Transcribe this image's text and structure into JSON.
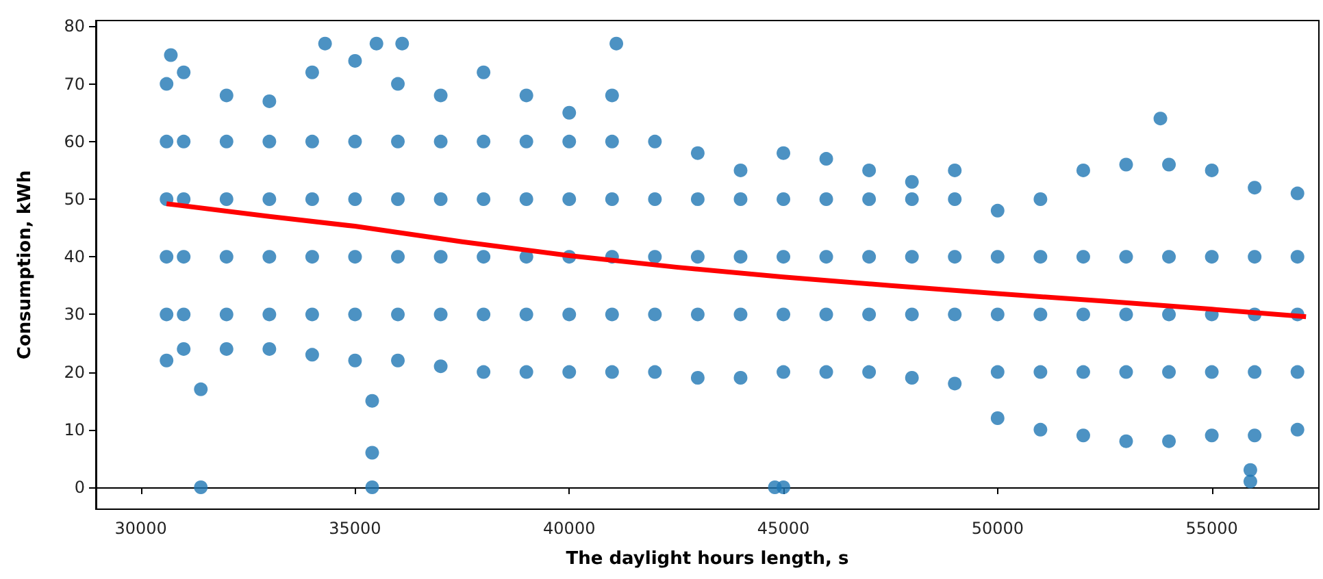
{
  "chart_data": {
    "type": "scatter",
    "xlabel": "The daylight hours length, s",
    "ylabel": "Consumption, kWh",
    "xlim": [
      28950,
      57500
    ],
    "ylim": [
      -3.8,
      81
    ],
    "xticks": [
      30000,
      35000,
      40000,
      45000,
      50000,
      55000
    ],
    "yticks": [
      0,
      10,
      20,
      30,
      40,
      50,
      60,
      70,
      80
    ],
    "series": [
      {
        "color": "#1f77b4",
        "marker": "circle",
        "x": [
          30600,
          31000,
          32000,
          33000,
          34000,
          35000,
          36000,
          37000,
          38000,
          39000,
          40000,
          41000,
          42000,
          43000,
          44000,
          45000,
          46000,
          47000,
          48000,
          49000,
          50000,
          51000,
          52000,
          53000,
          54000,
          55000,
          56000,
          57000,
          30600,
          31000,
          32000,
          33000,
          34000,
          35000,
          36000,
          37000,
          38000,
          39000,
          40000,
          41000,
          42000,
          43000,
          44000,
          45000,
          46000,
          47000,
          48000,
          49000,
          50000,
          51000,
          52000,
          53000,
          54000,
          55000,
          56000,
          57000,
          30600,
          30600,
          30600,
          30600,
          31000,
          31000,
          31000,
          31000,
          32000,
          32000,
          32000,
          32000,
          33000,
          33000,
          33000,
          33000,
          34000,
          34000,
          34000,
          34000,
          35000,
          35000,
          35000,
          35000,
          36000,
          36000,
          36000,
          36000,
          37000,
          37000,
          37000,
          37000,
          38000,
          38000,
          38000,
          38000,
          39000,
          39000,
          39000,
          39000,
          40000,
          40000,
          40000,
          40000,
          41000,
          41000,
          41000,
          41000,
          42000,
          42000,
          42000,
          43000,
          43000,
          43000,
          44000,
          44000,
          44000,
          45000,
          45000,
          45000,
          46000,
          46000,
          46000,
          47000,
          47000,
          47000,
          48000,
          48000,
          48000,
          49000,
          49000,
          49000,
          50000,
          50000,
          50000,
          51000,
          51000,
          51000,
          52000,
          52000,
          52000,
          53000,
          53000,
          53000,
          54000,
          54000,
          54000,
          55000,
          55000,
          55000,
          56000,
          56000,
          56000,
          57000,
          57000,
          57000,
          31400,
          31400,
          35400,
          35400,
          35400,
          44800,
          45000,
          55900,
          55900,
          41100,
          34300,
          35500,
          36100,
          30700,
          53800
        ],
        "values": [
          70,
          72,
          68,
          67,
          72,
          74,
          70,
          68,
          72,
          68,
          65,
          68,
          60,
          58,
          55,
          58,
          57,
          55,
          53,
          55,
          48,
          50,
          55,
          56,
          56,
          55,
          52,
          51,
          22,
          24,
          24,
          24,
          23,
          22,
          22,
          21,
          20,
          20,
          20,
          20,
          20,
          19,
          19,
          20,
          20,
          20,
          19,
          18,
          12,
          10,
          9,
          8,
          8,
          9,
          9,
          10,
          30,
          40,
          50,
          60,
          30,
          40,
          50,
          60,
          30,
          40,
          50,
          60,
          30,
          40,
          50,
          60,
          30,
          40,
          50,
          60,
          30,
          40,
          50,
          60,
          30,
          40,
          50,
          60,
          30,
          40,
          50,
          60,
          30,
          40,
          50,
          60,
          30,
          40,
          50,
          60,
          30,
          40,
          50,
          60,
          30,
          40,
          50,
          60,
          30,
          40,
          50,
          30,
          40,
          50,
          30,
          40,
          50,
          30,
          40,
          50,
          30,
          40,
          50,
          30,
          40,
          50,
          30,
          40,
          50,
          30,
          40,
          50,
          20,
          30,
          40,
          20,
          30,
          40,
          20,
          30,
          40,
          20,
          30,
          40,
          20,
          30,
          40,
          20,
          30,
          40,
          20,
          30,
          40,
          20,
          30,
          40,
          0,
          17,
          0,
          6,
          15,
          0,
          0,
          1,
          3,
          77,
          77,
          77,
          77,
          75,
          64
        ]
      },
      {
        "type": "line",
        "color": "#ff0000",
        "x": [
          30600,
          33000,
          35000,
          37500,
          40000,
          42500,
          45000,
          47500,
          50000,
          52500,
          55000,
          57200
        ],
        "values": [
          49.2,
          47,
          45.3,
          42.6,
          40.2,
          38.2,
          36.5,
          35,
          33.6,
          32.3,
          30.9,
          29.6
        ]
      }
    ]
  }
}
